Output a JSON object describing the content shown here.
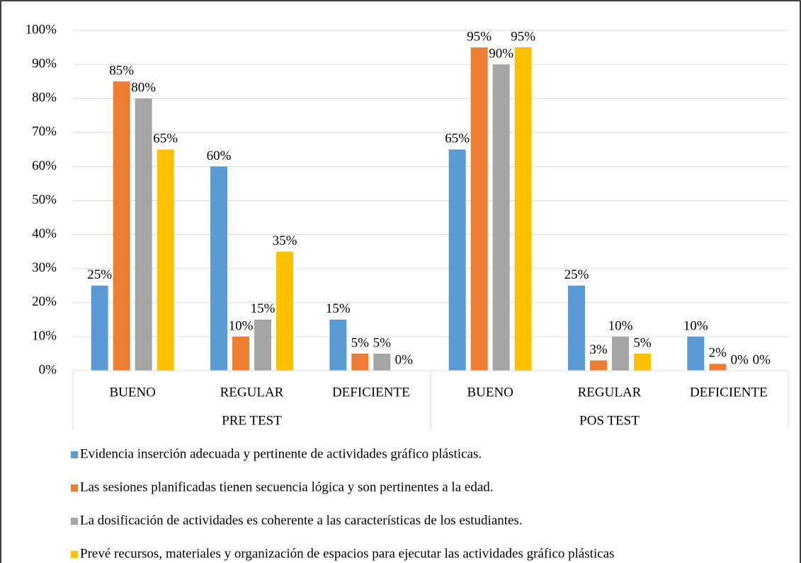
{
  "chart_data": {
    "type": "bar",
    "categories": [
      "BUENO",
      "REGULAR",
      "DEFICIENTE",
      "BUENO",
      "REGULAR",
      "DEFICIENTE"
    ],
    "group_labels": [
      "PRE TEST",
      "POS TEST"
    ],
    "series": [
      {
        "name": "Evidencia inserción adecuada y pertinente de actividades gráfico plásticas.",
        "color": "#5b9bd5",
        "values": [
          25,
          60,
          15,
          65,
          25,
          10
        ],
        "value_labels": [
          "25%",
          "60%",
          "15%",
          "65%",
          "25%",
          "10%"
        ]
      },
      {
        "name": "Las sesiones planificadas tienen secuencia lógica y son pertinentes a la edad.",
        "color": "#ed7d31",
        "values": [
          85,
          10,
          5,
          95,
          3,
          2
        ],
        "value_labels": [
          "85%",
          "10%",
          "5%",
          "95%",
          "3%",
          "2%"
        ]
      },
      {
        "name": "La dosificación de actividades es coherente a las características de los estudiantes.",
        "color": "#a5a5a5",
        "values": [
          80,
          15,
          5,
          90,
          10,
          0
        ],
        "value_labels": [
          "80%",
          "15%",
          "5%",
          "90%",
          "10%",
          "0%"
        ]
      },
      {
        "name": "Prevé recursos, materiales y organización de espacios para ejecutar las actividades gráfico plásticas",
        "color": "#ffc000",
        "values": [
          65,
          35,
          0,
          95,
          5,
          0
        ],
        "value_labels": [
          "65%",
          "35%",
          "0%",
          "95%",
          "5%",
          "0%"
        ]
      }
    ],
    "ylim": [
      0,
      100
    ],
    "yticks": [
      {
        "value": 0,
        "label": "0%"
      },
      {
        "value": 10,
        "label": "10%"
      },
      {
        "value": 20,
        "label": "20%"
      },
      {
        "value": 30,
        "label": "30%"
      },
      {
        "value": 40,
        "label": "40%"
      },
      {
        "value": 50,
        "label": "50%"
      },
      {
        "value": 60,
        "label": "60%"
      },
      {
        "value": 70,
        "label": "70%"
      },
      {
        "value": 80,
        "label": "80%"
      },
      {
        "value": 90,
        "label": "90%"
      },
      {
        "value": 100,
        "label": "100%"
      }
    ],
    "grid": true
  }
}
